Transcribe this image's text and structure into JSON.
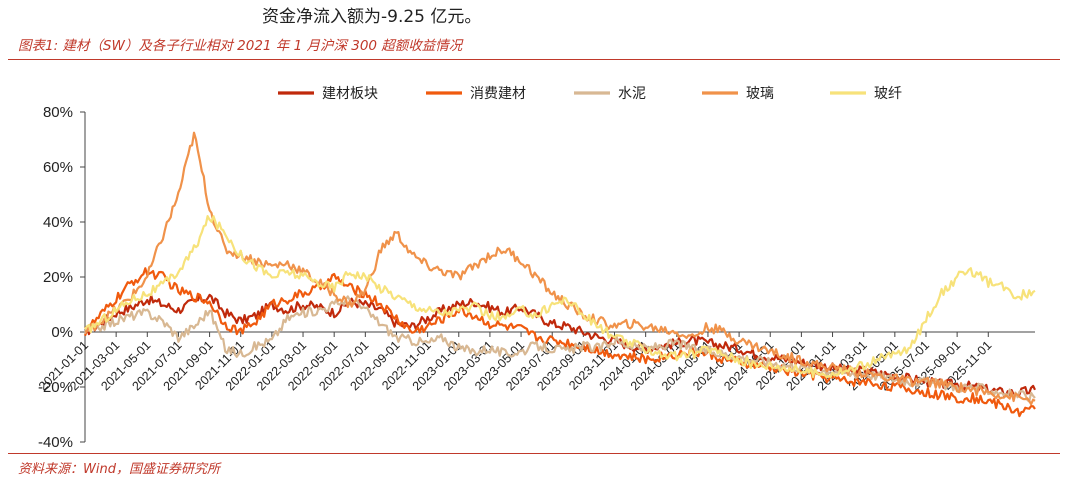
{
  "header": {
    "top_text": "资金净流入额为-9.25 亿元。",
    "figure_title": "图表1:  建材（SW）及各子行业相对 2021 年 1 月沪深 300 超额收益情况"
  },
  "footer": {
    "source": "资料来源：Wind，国盛证券研究所"
  },
  "chart_data": {
    "type": "line",
    "title": "",
    "xlabel": "",
    "ylabel": "",
    "ylim": [
      -0.4,
      0.8
    ],
    "y_ticks": [
      -0.4,
      -0.2,
      0,
      0.2,
      0.4,
      0.6,
      0.8
    ],
    "y_tick_labels": [
      "-40%",
      "-20%",
      "0%",
      "20%",
      "40%",
      "60%",
      "80%"
    ],
    "x_tick_labels": [
      "2021-01-01",
      "2021-03-01",
      "2021-05-01",
      "2021-07-01",
      "2021-09-01",
      "2021-11-01",
      "2022-01-01",
      "2022-03-01",
      "2022-05-01",
      "2022-07-01",
      "2022-09-01",
      "2022-11-01",
      "2023-01-01",
      "2023-03-01",
      "2023-05-01",
      "2023-07-01",
      "2023-09-01",
      "2023-11-01",
      "2024-01-01",
      "2024-03-01",
      "2024-05-01",
      "2024-07-01",
      "2024-09-01",
      "2024-11-01",
      "2025-01-01",
      "2025-03-01",
      "2025-05-01",
      "2025-07-01",
      "2025-09-01",
      "2025-11-01"
    ],
    "legend_position": "top",
    "x_months": [
      0,
      1,
      2,
      3,
      4,
      5,
      6,
      7,
      8,
      9,
      10,
      11,
      12,
      13,
      14,
      15,
      16,
      17,
      18,
      19,
      20,
      21,
      22,
      23,
      24,
      25,
      26,
      27,
      28,
      29,
      30,
      31,
      32,
      33,
      34,
      35,
      36,
      37,
      38,
      39,
      40,
      41,
      42,
      43,
      44,
      45,
      46,
      47,
      48,
      49,
      50,
      51,
      52,
      53,
      54,
      55,
      56,
      57,
      58,
      59,
      60,
      61
    ],
    "series": [
      {
        "name": "建材板块",
        "color": "#c0290b",
        "values": [
          0.0,
          0.03,
          0.07,
          0.09,
          0.12,
          0.1,
          0.08,
          0.11,
          0.13,
          0.07,
          0.04,
          0.06,
          0.1,
          0.08,
          0.1,
          0.09,
          0.07,
          0.11,
          0.1,
          0.08,
          0.03,
          0.02,
          0.05,
          0.08,
          0.1,
          0.11,
          0.09,
          0.07,
          0.09,
          0.06,
          0.03,
          0.02,
          0.0,
          -0.02,
          -0.03,
          -0.05,
          -0.06,
          -0.05,
          -0.04,
          -0.03,
          -0.04,
          -0.05,
          -0.06,
          -0.08,
          -0.09,
          -0.1,
          -0.11,
          -0.12,
          -0.13,
          -0.14,
          -0.14,
          -0.15,
          -0.16,
          -0.17,
          -0.18,
          -0.19,
          -0.19,
          -0.2,
          -0.21,
          -0.22,
          -0.22,
          -0.21
        ]
      },
      {
        "name": "消费建材",
        "color": "#f05a0e",
        "values": [
          0.0,
          0.06,
          0.12,
          0.18,
          0.22,
          0.2,
          0.15,
          0.13,
          0.11,
          0.03,
          0.0,
          0.04,
          0.1,
          0.12,
          0.14,
          0.16,
          0.2,
          0.16,
          0.14,
          0.1,
          0.05,
          0.0,
          0.02,
          0.05,
          0.08,
          0.06,
          0.03,
          0.02,
          0.01,
          -0.02,
          -0.03,
          -0.04,
          -0.05,
          -0.07,
          -0.08,
          -0.09,
          -0.1,
          -0.09,
          -0.08,
          -0.07,
          -0.08,
          -0.1,
          -0.11,
          -0.12,
          -0.13,
          -0.14,
          -0.15,
          -0.16,
          -0.17,
          -0.18,
          -0.18,
          -0.19,
          -0.2,
          -0.21,
          -0.22,
          -0.23,
          -0.24,
          -0.24,
          -0.25,
          -0.27,
          -0.29,
          -0.28
        ]
      },
      {
        "name": "水泥",
        "color": "#d8b893",
        "values": [
          0.0,
          0.02,
          0.04,
          0.06,
          0.07,
          0.04,
          -0.02,
          0.02,
          0.08,
          -0.06,
          -0.08,
          -0.05,
          -0.03,
          0.05,
          0.07,
          0.08,
          0.1,
          0.12,
          0.08,
          0.03,
          -0.02,
          -0.03,
          -0.04,
          -0.02,
          -0.06,
          -0.07,
          -0.06,
          -0.08,
          -0.07,
          -0.05,
          -0.06,
          -0.07,
          -0.05,
          -0.06,
          -0.03,
          -0.05,
          -0.06,
          -0.05,
          -0.04,
          -0.06,
          -0.07,
          -0.08,
          -0.09,
          -0.1,
          -0.11,
          -0.12,
          -0.13,
          -0.14,
          -0.14,
          -0.15,
          -0.15,
          -0.16,
          -0.17,
          -0.18,
          -0.18,
          -0.19,
          -0.2,
          -0.2,
          -0.21,
          -0.22,
          -0.23,
          -0.24
        ]
      },
      {
        "name": "玻璃",
        "color": "#f0924a",
        "values": [
          0.0,
          0.04,
          0.08,
          0.13,
          0.2,
          0.35,
          0.5,
          0.72,
          0.45,
          0.3,
          0.28,
          0.26,
          0.24,
          0.25,
          0.22,
          0.18,
          0.14,
          0.1,
          0.15,
          0.3,
          0.36,
          0.28,
          0.24,
          0.22,
          0.2,
          0.24,
          0.28,
          0.3,
          0.26,
          0.2,
          0.14,
          0.1,
          0.06,
          0.04,
          0.02,
          0.03,
          0.02,
          0.01,
          0.0,
          -0.02,
          0.02,
          0.0,
          -0.03,
          -0.05,
          -0.07,
          -0.09,
          -0.1,
          -0.12,
          -0.13,
          -0.14,
          -0.15,
          -0.16,
          -0.17,
          -0.18,
          -0.18,
          -0.19,
          -0.2,
          -0.21,
          -0.22,
          -0.23,
          -0.24,
          -0.25
        ]
      },
      {
        "name": "玻纤",
        "color": "#f7e27a",
        "values": [
          0.0,
          0.04,
          0.08,
          0.12,
          0.14,
          0.17,
          0.22,
          0.3,
          0.42,
          0.36,
          0.28,
          0.24,
          0.2,
          0.22,
          0.2,
          0.18,
          0.16,
          0.22,
          0.2,
          0.16,
          0.13,
          0.1,
          0.08,
          0.07,
          0.08,
          0.09,
          0.06,
          0.05,
          0.08,
          0.06,
          0.1,
          0.12,
          0.06,
          0.02,
          -0.02,
          -0.04,
          -0.06,
          -0.08,
          -0.09,
          -0.08,
          -0.06,
          -0.08,
          -0.1,
          -0.12,
          -0.12,
          -0.13,
          -0.14,
          -0.15,
          -0.15,
          -0.14,
          -0.12,
          -0.1,
          -0.08,
          -0.06,
          0.05,
          0.14,
          0.2,
          0.22,
          0.18,
          0.16,
          0.13,
          0.15
        ]
      }
    ]
  }
}
